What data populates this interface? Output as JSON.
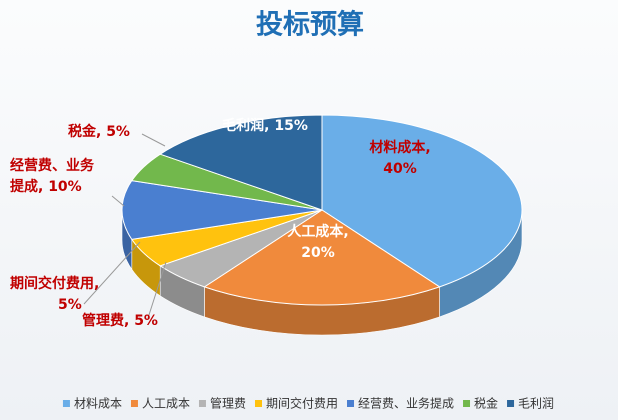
{
  "chart_data": {
    "type": "pie3d",
    "title": "投标预算",
    "categories": [
      "材料成本",
      "人工成本",
      "管理费",
      "期间交付费用",
      "经营费、业务提成",
      "税金",
      "毛利润"
    ],
    "values": [
      40,
      20,
      5,
      5,
      10,
      5,
      15
    ],
    "value_labels": [
      [
        "材料成本,",
        "40%"
      ],
      [
        "人工成本,",
        "20%"
      ],
      [
        "管理费, 5%"
      ],
      [
        "期间交付费用,",
        "5%"
      ],
      [
        "经营费、业务",
        "提成, 10%"
      ],
      [
        "税金, 5%"
      ],
      [
        "毛利润, 15%"
      ]
    ],
    "colors": [
      "#6aaee8",
      "#f08a3c",
      "#b4b4b4",
      "#ffc20e",
      "#4a7fd0",
      "#72b84c",
      "#2d679c"
    ],
    "legend": "bottom"
  }
}
